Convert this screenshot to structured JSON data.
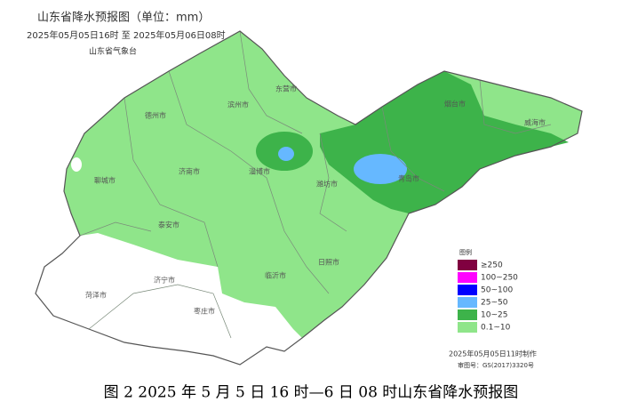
{
  "header": {
    "title": "山东省降水预报图（单位：mm）",
    "period": "2025年05月05日16时  至  2025年05月06日08时",
    "issuer": "山东省气象台"
  },
  "cities": [
    {
      "label": "德州市"
    },
    {
      "label": "滨州市"
    },
    {
      "label": "东营市"
    },
    {
      "label": "烟台市"
    },
    {
      "label": "威海市"
    },
    {
      "label": "聊城市"
    },
    {
      "label": "济南市"
    },
    {
      "label": "淄博市"
    },
    {
      "label": "潍坊市"
    },
    {
      "label": "青岛市"
    },
    {
      "label": "泰安市"
    },
    {
      "label": "济宁市"
    },
    {
      "label": "菏泽市"
    },
    {
      "label": "临沂市"
    },
    {
      "label": "日照市"
    },
    {
      "label": "枣庄市"
    }
  ],
  "legend": {
    "title": "图例",
    "items": [
      {
        "label": "≥250",
        "color": "#800040"
      },
      {
        "label": "100~250",
        "color": "#ff00ff"
      },
      {
        "label": "50~100",
        "color": "#0000ff"
      },
      {
        "label": "25~50",
        "color": "#66b8ff"
      },
      {
        "label": "10~25",
        "color": "#3db34a"
      },
      {
        "label": "0.1~10",
        "color": "#8fe58a"
      }
    ]
  },
  "footer": {
    "made": "2025年05月05日11时制作",
    "approval": "审图号：GS(2017)3320号"
  },
  "caption": "图 2 2025 年 5 月 5 日 16 时—6 日 08 时山东省降水预报图"
}
